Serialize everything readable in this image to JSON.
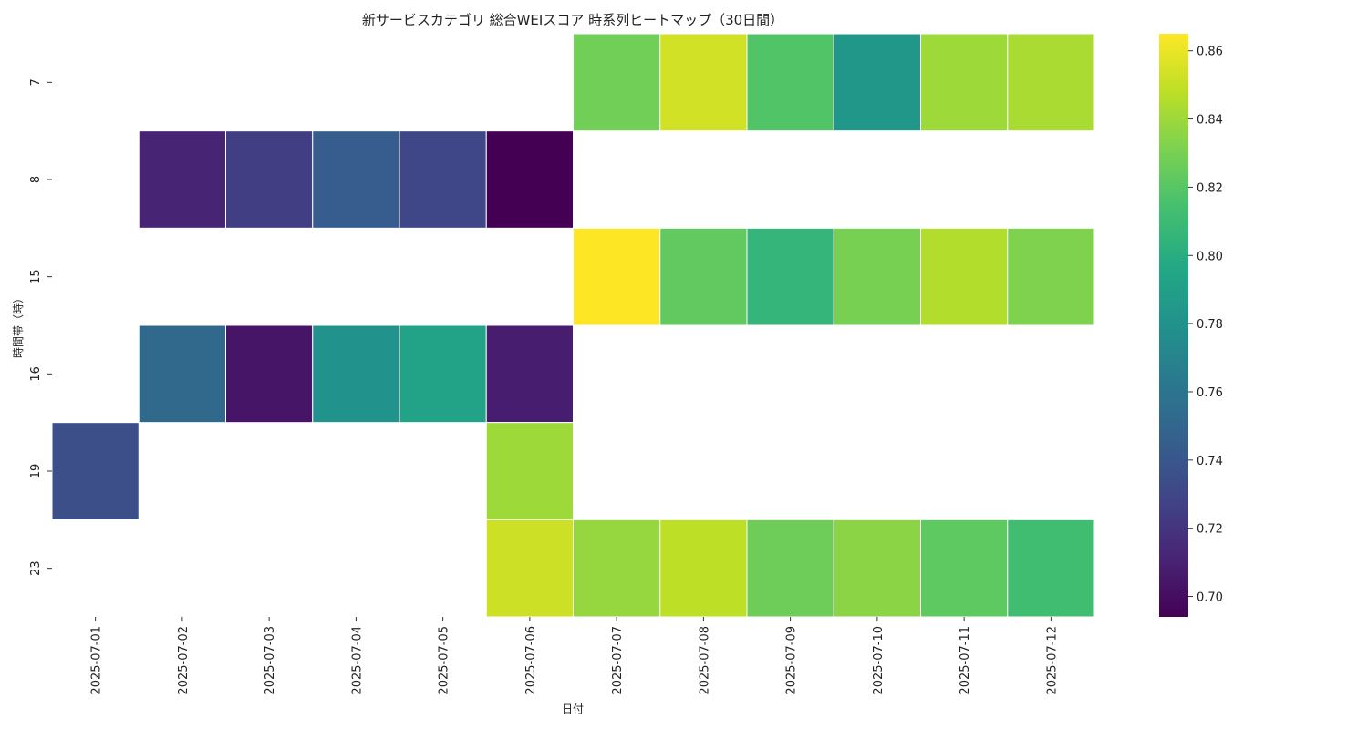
{
  "chart_data": {
    "type": "heatmap",
    "title": "新サービスカテゴリ 総合WEIスコア 時系列ヒートマップ（30日間）",
    "xlabel": "日付",
    "ylabel": "時間帯（時）",
    "x": [
      "2025-07-01",
      "2025-07-02",
      "2025-07-03",
      "2025-07-04",
      "2025-07-05",
      "2025-07-06",
      "2025-07-07",
      "2025-07-08",
      "2025-07-09",
      "2025-07-10",
      "2025-07-11",
      "2025-07-12"
    ],
    "y": [
      "7",
      "8",
      "15",
      "16",
      "19",
      "23"
    ],
    "values": [
      [
        null,
        null,
        null,
        null,
        null,
        null,
        0.828,
        0.853,
        0.818,
        0.784,
        0.84,
        0.843
      ],
      [
        null,
        0.711,
        0.725,
        0.744,
        0.73,
        0.694,
        null,
        null,
        null,
        null,
        null,
        null
      ],
      [
        null,
        null,
        null,
        null,
        null,
        null,
        0.865,
        0.823,
        0.806,
        0.83,
        0.845,
        0.832
      ],
      [
        null,
        0.752,
        0.704,
        0.78,
        0.792,
        0.708,
        null,
        null,
        null,
        null,
        null,
        null
      ],
      [
        0.735,
        null,
        null,
        null,
        null,
        0.84,
        null,
        null,
        null,
        null,
        null,
        null
      ],
      [
        null,
        null,
        null,
        null,
        null,
        0.852,
        0.838,
        0.848,
        0.827,
        0.835,
        0.822,
        0.812
      ]
    ],
    "colormap": "viridis",
    "vmin": 0.694,
    "vmax": 0.865,
    "colorbar_ticks": [
      "0.70",
      "0.72",
      "0.74",
      "0.76",
      "0.78",
      "0.80",
      "0.82",
      "0.84",
      "0.86"
    ],
    "grid": false,
    "legend": "colorbar-right"
  }
}
